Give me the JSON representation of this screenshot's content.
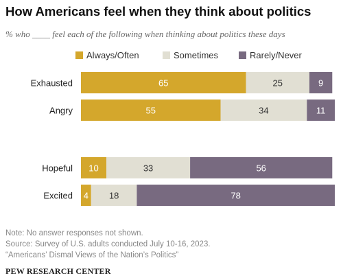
{
  "chart_data": {
    "type": "bar",
    "orientation": "horizontal",
    "stacked": true,
    "title": "How Americans feel when they think about politics",
    "subtitle": "% who ____ feel each of the following when thinking about politics these days",
    "categories": [
      "Exhausted",
      "Angry",
      "Hopeful",
      "Excited"
    ],
    "series": [
      {
        "name": "Always/Often",
        "values": [
          65,
          55,
          10,
          4
        ],
        "color": "#d4a72c"
      },
      {
        "name": "Sometimes",
        "values": [
          25,
          34,
          33,
          18
        ],
        "color": "#e1dfd3"
      },
      {
        "name": "Rarely/Never",
        "values": [
          9,
          11,
          56,
          78
        ],
        "color": "#786a80"
      }
    ],
    "legend": "top",
    "xlim": [
      0,
      100
    ],
    "grid": false
  },
  "footer": {
    "note": "Note: No answer responses not shown.",
    "source": "Source: Survey of U.S. adults conducted July 10-16, 2023.",
    "report": "“Americans’ Dismal Views of the Nation’s Politics”",
    "brand": "PEW RESEARCH CENTER"
  }
}
